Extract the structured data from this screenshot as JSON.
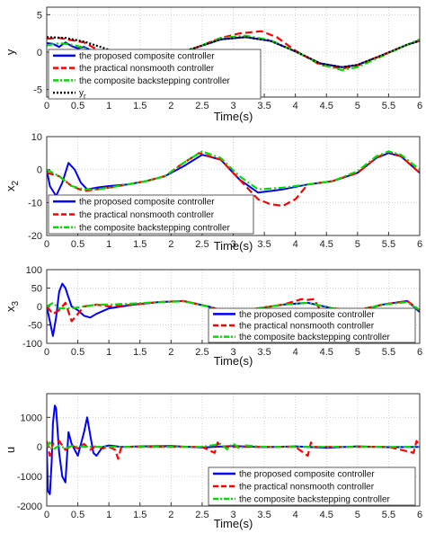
{
  "colors": {
    "proposed": "#0000ff",
    "practical": "#ff0000",
    "backstepping": "#00dd00",
    "reference": "#000000"
  },
  "chart_data": [
    {
      "type": "line",
      "panel": "y",
      "ylabel": "y",
      "xlabel": "Time(s)",
      "xlim": [
        0,
        6
      ],
      "ylim": [
        -6,
        6
      ],
      "xticks": [
        "0",
        "0.5",
        "1",
        "1.5",
        "2",
        "2.5",
        "3",
        "3.5",
        "4",
        "4.5",
        "5",
        "5.5",
        "6"
      ],
      "yticks": [
        "5",
        "0",
        "-5"
      ],
      "grid": true,
      "legend_position": "lower-left",
      "series": [
        {
          "name": "the proposed composite controller",
          "color": "#0000ff",
          "style": "solid",
          "x": [
            0,
            0.1,
            0.2,
            0.3,
            0.4,
            0.5,
            0.6,
            0.7,
            0.8,
            2.0,
            2.4,
            2.8,
            3.2,
            3.6,
            4.0,
            4.4,
            4.75,
            5.0,
            5.4,
            5.8,
            6.0
          ],
          "y": [
            1.2,
            1.1,
            0.7,
            1.3,
            0.8,
            0.5,
            0.7,
            0.3,
            -0.1,
            -0.5,
            0.6,
            1.7,
            2.0,
            1.5,
            0.1,
            -1.5,
            -2.0,
            -1.7,
            -0.4,
            1.0,
            1.5
          ]
        },
        {
          "name": "the practical nonsmooth controller",
          "color": "#ff0000",
          "style": "dashed",
          "x": [
            0,
            0.2,
            0.4,
            0.6,
            0.8,
            0.9,
            2.1,
            2.4,
            2.8,
            3.1,
            3.45,
            3.7,
            4.0,
            4.4,
            4.75,
            5.0,
            5.4,
            5.8,
            6.0
          ],
          "y": [
            1.8,
            1.9,
            1.6,
            1.3,
            0.4,
            0,
            -0.3,
            0.6,
            1.9,
            2.5,
            2.8,
            2.0,
            0.2,
            -1.7,
            -2.2,
            -1.8,
            -0.4,
            1.0,
            1.6
          ]
        },
        {
          "name": "the composite backstepping controller",
          "color": "#00dd00",
          "style": "dashdot",
          "x": [
            0,
            0.2,
            0.4,
            0.6,
            0.8,
            2.0,
            2.4,
            2.8,
            3.2,
            3.6,
            4.0,
            4.4,
            4.75,
            5.0,
            5.4,
            5.8,
            6.0
          ],
          "y": [
            0.9,
            1.2,
            1.0,
            0.6,
            0,
            -0.5,
            0.6,
            1.9,
            2.2,
            1.6,
            0.1,
            -1.6,
            -2.4,
            -2.0,
            -0.5,
            1.0,
            1.7
          ]
        },
        {
          "name": "y_r",
          "color": "#000000",
          "style": "dotted",
          "x": [
            0,
            0.3,
            0.6,
            0.9,
            1.2,
            1.6,
            2.0,
            2.4,
            2.8,
            3.2,
            3.6,
            4.0,
            4.4,
            4.75,
            5.0,
            5.4,
            5.8,
            6.0
          ],
          "y": [
            2.0,
            1.9,
            1.4,
            0.6,
            -0.3,
            -1.0,
            -0.4,
            0.6,
            1.7,
            2.0,
            1.5,
            0.1,
            -1.5,
            -2.0,
            -1.7,
            -0.4,
            1.0,
            1.5
          ]
        }
      ]
    },
    {
      "type": "line",
      "panel": "x2",
      "ylabel": "x",
      "ylabel_sub": "2",
      "xlabel": "Time(s)",
      "xlim": [
        0,
        6
      ],
      "ylim": [
        -20,
        10
      ],
      "xticks": [
        "0",
        "0.5",
        "1",
        "1.5",
        "2",
        "2.5",
        "3",
        "3.5",
        "4",
        "4.5",
        "5",
        "5.5",
        "6"
      ],
      "yticks": [
        "10",
        "0",
        "-10",
        "-20"
      ],
      "grid": true,
      "legend_position": "lower-left",
      "series": [
        {
          "name": "the proposed composite controller",
          "color": "#0000ff",
          "style": "solid",
          "x": [
            0,
            0.05,
            0.15,
            0.25,
            0.35,
            0.45,
            0.55,
            0.65,
            0.8,
            1.0,
            1.3,
            1.6,
            1.9,
            2.2,
            2.5,
            2.8,
            3.1,
            3.4,
            3.8,
            4.2,
            4.6,
            5.0,
            5.3,
            5.5,
            5.7,
            6.0
          ],
          "y": [
            0,
            -5,
            -8,
            -4,
            2,
            0,
            -4,
            -6,
            -5.5,
            -5,
            -4.5,
            -3.5,
            -2,
            1,
            4.5,
            3,
            -3,
            -7,
            -6,
            -4.5,
            -3.5,
            -1,
            3.5,
            5,
            4,
            -1
          ]
        },
        {
          "name": "the practical nonsmooth controller",
          "color": "#ff0000",
          "style": "dashed",
          "x": [
            0,
            0.2,
            0.4,
            0.6,
            0.8,
            1.0,
            1.3,
            1.6,
            1.9,
            2.2,
            2.45,
            2.8,
            3.1,
            3.4,
            3.6,
            3.8,
            4.0,
            4.2,
            4.6,
            5.0,
            5.3,
            5.5,
            5.7,
            6.0
          ],
          "y": [
            -1,
            -2,
            -5,
            -6.5,
            -6,
            -5.5,
            -4.5,
            -3.5,
            -2,
            2,
            5,
            3,
            -3,
            -9,
            -10.5,
            -11,
            -9,
            -4.5,
            -3.5,
            -1,
            3.5,
            5.5,
            4,
            -1
          ]
        },
        {
          "name": "the composite backstepping controller",
          "color": "#00dd00",
          "style": "dashdot",
          "x": [
            0,
            0.2,
            0.4,
            0.6,
            0.8,
            1.0,
            1.3,
            1.6,
            1.9,
            2.2,
            2.5,
            2.8,
            3.1,
            3.4,
            3.8,
            4.2,
            4.6,
            5.0,
            5.3,
            5.5,
            5.7,
            6.0
          ],
          "y": [
            0,
            -2,
            -5,
            -6,
            -6,
            -5.5,
            -4.5,
            -3.5,
            -2,
            2,
            5.5,
            3.5,
            -2,
            -6,
            -5.5,
            -4.5,
            -3.5,
            -0.5,
            4,
            5.5,
            4.5,
            0
          ]
        }
      ]
    },
    {
      "type": "line",
      "panel": "x3",
      "ylabel": "x",
      "ylabel_sub": "3",
      "xlabel": "Time(s)",
      "xlim": [
        0,
        6
      ],
      "ylim": [
        -100,
        100
      ],
      "xticks": [
        "0",
        "0.5",
        "1",
        "1.5",
        "2",
        "2.5",
        "3",
        "3.5",
        "4",
        "4.5",
        "5",
        "5.5",
        "6"
      ],
      "yticks": [
        "100",
        "50",
        "0",
        "-50",
        "-100"
      ],
      "grid": true,
      "legend_position": "lower-right",
      "series": [
        {
          "name": "the proposed composite controller",
          "color": "#0000ff",
          "style": "solid",
          "x": [
            0,
            0.05,
            0.1,
            0.15,
            0.2,
            0.25,
            0.3,
            0.35,
            0.4,
            0.5,
            0.6,
            0.7,
            0.8,
            1.0,
            1.4,
            1.8,
            2.2,
            2.6,
            2.8,
            3.0,
            3.4,
            3.8,
            4.2,
            4.6,
            5.0,
            5.4,
            5.8,
            6.0
          ],
          "y": [
            0,
            -40,
            -80,
            -30,
            40,
            62,
            50,
            25,
            0,
            -10,
            -25,
            -30,
            -20,
            -5,
            5,
            12,
            15,
            0,
            -10,
            -15,
            -5,
            5,
            10,
            -5,
            -15,
            5,
            15,
            -15
          ]
        },
        {
          "name": "the practical nonsmooth controller",
          "color": "#ff0000",
          "style": "dashed",
          "x": [
            0,
            0.1,
            0.2,
            0.3,
            0.4,
            0.5,
            0.6,
            0.8,
            1.0,
            1.4,
            1.8,
            2.2,
            2.6,
            2.8,
            3.0,
            3.4,
            3.8,
            4.0,
            4.1,
            4.2,
            4.3,
            4.4,
            4.6,
            5.0,
            5.4,
            5.8,
            6.0
          ],
          "y": [
            0,
            -20,
            -10,
            10,
            -40,
            -20,
            0,
            5,
            0,
            5,
            12,
            15,
            0,
            -10,
            -15,
            -5,
            5,
            15,
            20,
            18,
            20,
            -10,
            -5,
            -10,
            5,
            15,
            -10
          ]
        },
        {
          "name": "the composite backstepping controller",
          "color": "#00dd00",
          "style": "dashdot",
          "x": [
            0,
            0.1,
            0.2,
            0.4,
            0.6,
            0.8,
            1.0,
            1.4,
            1.8,
            2.2,
            2.6,
            2.8,
            3.0,
            3.4,
            3.8,
            4.2,
            4.6,
            5.0,
            5.4,
            5.8,
            6.0
          ],
          "y": [
            0,
            10,
            -5,
            -5,
            0,
            5,
            5,
            8,
            12,
            14,
            0,
            -10,
            -14,
            -5,
            5,
            10,
            -5,
            -12,
            5,
            12,
            -10
          ]
        }
      ]
    },
    {
      "type": "line",
      "panel": "u",
      "ylabel": "u",
      "xlabel": "Time(s)",
      "xlim": [
        0,
        6
      ],
      "ylim": [
        -2000,
        1800
      ],
      "xticks": [
        "0",
        "0.5",
        "1",
        "1.5",
        "2",
        "2.5",
        "3",
        "3.5",
        "4",
        "4.5",
        "5",
        "5.5",
        "6"
      ],
      "yticks": [
        "1000",
        "0",
        "-1000",
        "-2000"
      ],
      "grid": true,
      "legend_position": "lower-right",
      "series": [
        {
          "name": "the proposed composite controller",
          "color": "#0000ff",
          "style": "solid",
          "x": [
            0,
            0.02,
            0.05,
            0.08,
            0.1,
            0.13,
            0.15,
            0.2,
            0.25,
            0.3,
            0.35,
            0.4,
            0.5,
            0.6,
            0.65,
            0.7,
            0.75,
            0.8,
            0.9,
            1.0,
            1.2,
            1.5,
            2.0,
            2.5,
            3.0,
            3.5,
            4.0,
            4.5,
            5.0,
            5.5,
            6.0
          ],
          "y": [
            0,
            -1500,
            -1600,
            -500,
            800,
            1400,
            1300,
            -200,
            -1000,
            -1200,
            500,
            100,
            -300,
            500,
            1000,
            400,
            -200,
            -300,
            0,
            50,
            0,
            20,
            30,
            -20,
            30,
            -10,
            20,
            -30,
            20,
            -10,
            0
          ]
        },
        {
          "name": "the practical nonsmooth controller",
          "color": "#ff0000",
          "style": "dashed",
          "x": [
            0,
            0.05,
            0.1,
            0.2,
            0.3,
            0.4,
            0.5,
            0.6,
            0.7,
            0.8,
            0.9,
            1.0,
            1.1,
            1.15,
            1.2,
            1.5,
            2.0,
            2.5,
            2.7,
            2.75,
            2.8,
            3.0,
            3.5,
            4.0,
            4.2,
            4.25,
            4.3,
            4.5,
            5.0,
            5.5,
            5.9,
            5.95,
            6.0
          ],
          "y": [
            200,
            -300,
            100,
            200,
            -100,
            50,
            -50,
            100,
            -100,
            50,
            -50,
            0,
            -100,
            -400,
            0,
            0,
            0,
            0,
            -200,
            150,
            0,
            0,
            0,
            0,
            -300,
            150,
            0,
            0,
            0,
            0,
            -200,
            200,
            0
          ]
        },
        {
          "name": "the composite backstepping controller",
          "color": "#00dd00",
          "style": "dashdot",
          "x": [
            0,
            0.05,
            0.1,
            0.2,
            0.3,
            0.4,
            0.5,
            0.8,
            1.0,
            1.5,
            2.0,
            2.5,
            2.8,
            2.9,
            3.0,
            3.1,
            3.2,
            3.5,
            4.0,
            4.5,
            5.0,
            5.5,
            6.0
          ],
          "y": [
            0,
            150,
            -100,
            50,
            -50,
            30,
            0,
            0,
            0,
            0,
            0,
            0,
            100,
            -80,
            120,
            -60,
            50,
            0,
            0,
            0,
            0,
            0,
            0
          ]
        }
      ]
    }
  ]
}
